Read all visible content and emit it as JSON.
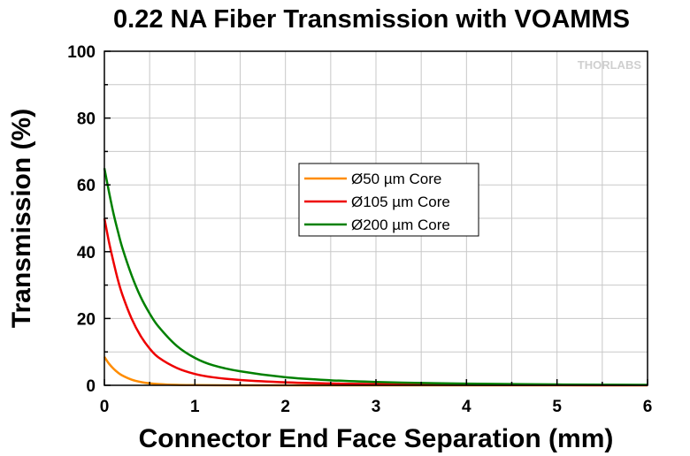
{
  "chart_data": {
    "type": "line",
    "title": "0.22 NA Fiber Transmission with VOAMMS",
    "xlabel": "Connector End Face Separation (mm)",
    "ylabel": "Transmission (%)",
    "xlim": [
      0,
      6
    ],
    "ylim": [
      0,
      100
    ],
    "xticks": [
      "0",
      "1",
      "2",
      "3",
      "4",
      "5",
      "6"
    ],
    "yticks": [
      "0",
      "20",
      "40",
      "60",
      "80",
      "100"
    ],
    "grid": true,
    "legend_position": "center",
    "logo_text": "THORLABS",
    "series": [
      {
        "name": "Ø50 µm Core",
        "color": "#ff8c00",
        "x": [
          0,
          0.05,
          0.1,
          0.15,
          0.2,
          0.3,
          0.4,
          0.5,
          0.6,
          0.7,
          0.8,
          1.0,
          1.5,
          2.0,
          3.0,
          4.0,
          5.0,
          6.0
        ],
        "y": [
          8.5,
          6.5,
          5.0,
          3.8,
          2.9,
          1.7,
          1.0,
          0.6,
          0.35,
          0.2,
          0.12,
          0.05,
          0.0,
          0.0,
          0.0,
          0.0,
          0.0,
          0.0
        ]
      },
      {
        "name": "Ø105 µm Core",
        "color": "#ee0000",
        "x": [
          0,
          0.05,
          0.1,
          0.15,
          0.2,
          0.3,
          0.4,
          0.5,
          0.6,
          0.8,
          1.0,
          1.2,
          1.5,
          2.0,
          2.5,
          3.0,
          4.0,
          5.0,
          6.0
        ],
        "y": [
          50,
          43,
          37,
          31.5,
          27,
          20,
          14.8,
          11,
          8.3,
          5.2,
          3.4,
          2.4,
          1.6,
          0.9,
          0.55,
          0.35,
          0.15,
          0.06,
          0.03
        ]
      },
      {
        "name": "Ø200 µm Core",
        "color": "#008000",
        "x": [
          0,
          0.05,
          0.1,
          0.15,
          0.2,
          0.3,
          0.4,
          0.5,
          0.6,
          0.8,
          1.0,
          1.2,
          1.5,
          2.0,
          2.5,
          3.0,
          3.5,
          4.0,
          5.0,
          6.0
        ],
        "y": [
          65,
          58,
          51.5,
          46,
          41,
          33,
          26.5,
          21.5,
          17.5,
          11.8,
          8.2,
          6.0,
          4.2,
          2.4,
          1.5,
          1.0,
          0.7,
          0.5,
          0.25,
          0.12
        ]
      }
    ]
  }
}
